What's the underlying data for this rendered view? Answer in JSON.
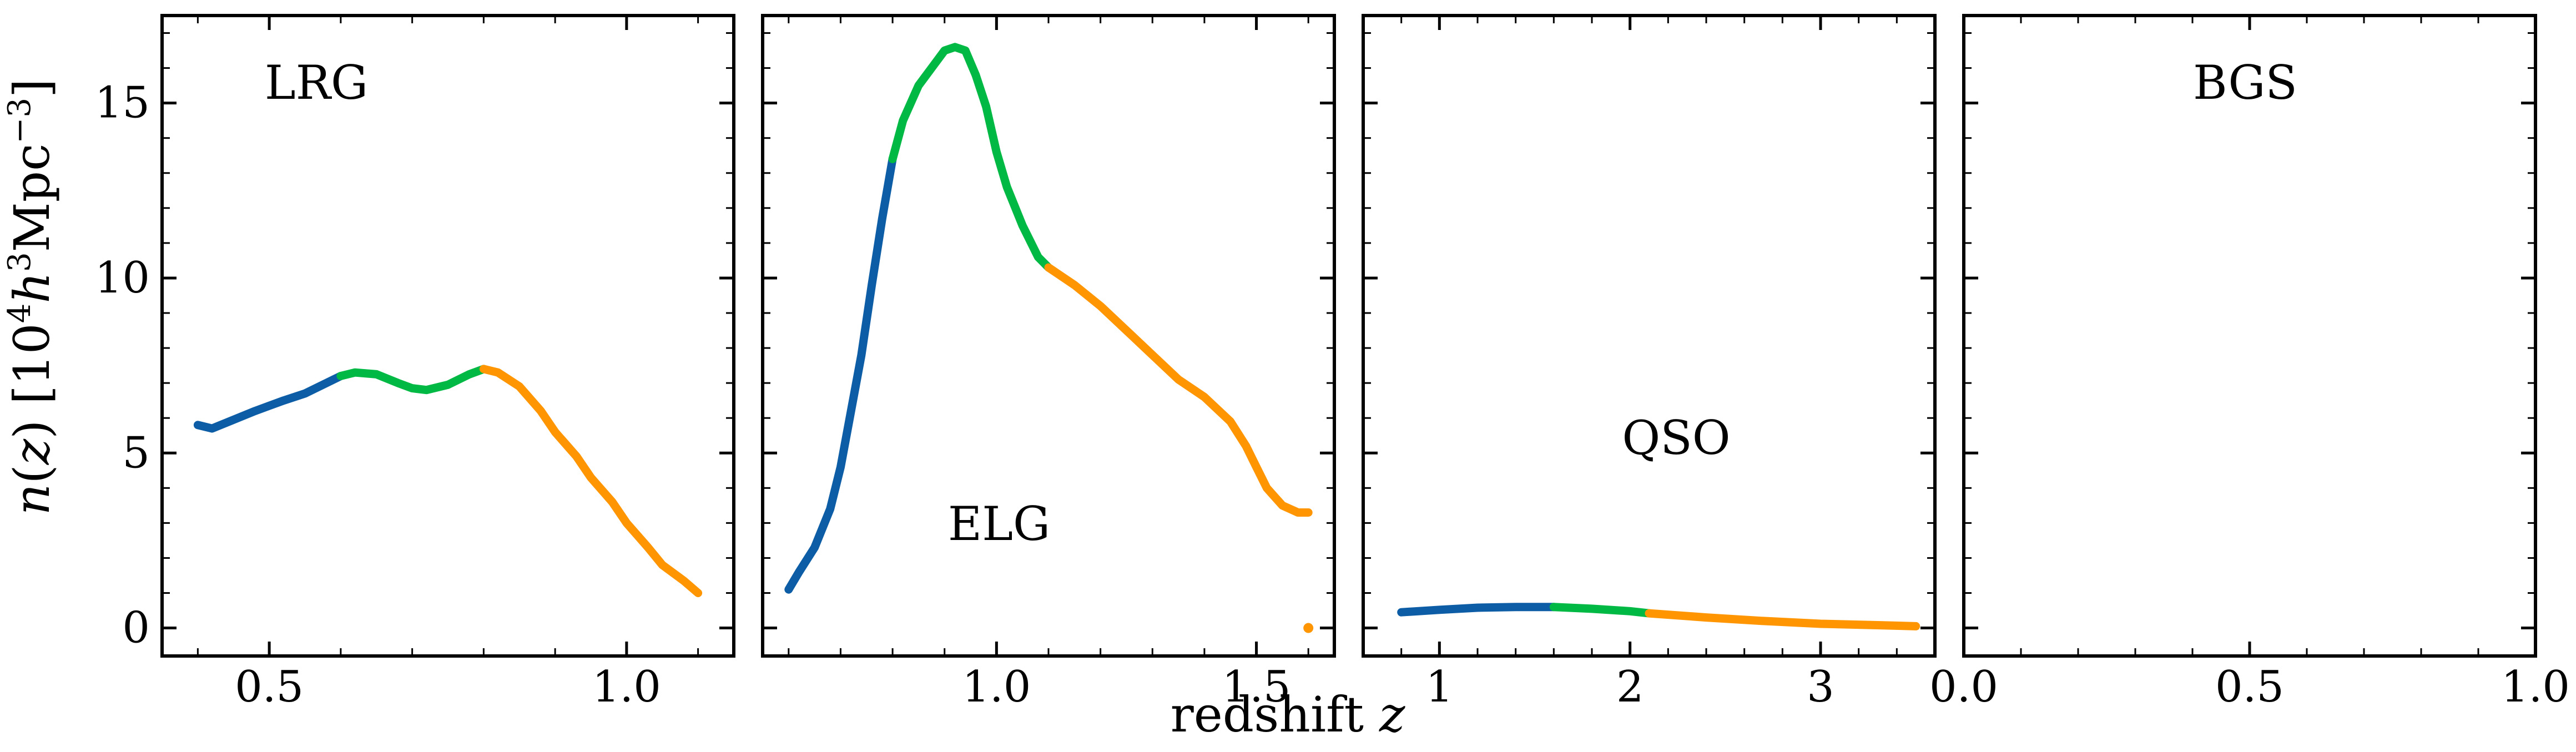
{
  "chart_data": {
    "type": "line",
    "xlabel": "redshift z",
    "ylabel": "n(z) [10^4 h^3 Mpc^-3]",
    "ylim": [
      -0.8,
      17.5
    ],
    "yticks": [
      0,
      5,
      10,
      15
    ],
    "sharey": true,
    "colors": {
      "first_segment": "#0C5DA5",
      "middle_segment": "#00B945",
      "last_segment": "#FF9500"
    },
    "panels": [
      {
        "title": "LRG",
        "xlim": [
          0.35,
          1.15
        ],
        "xticks": [
          0.5,
          1.0
        ],
        "xtick_labels": [
          "0.5",
          "1.0"
        ],
        "series": [
          {
            "color": "#0C5DA5",
            "x": [
              0.4,
              0.42,
              0.45,
              0.48,
              0.5,
              0.52,
              0.55,
              0.58,
              0.6
            ],
            "y": [
              5.8,
              5.7,
              5.95,
              6.2,
              6.35,
              6.5,
              6.7,
              7.0,
              7.2
            ]
          },
          {
            "color": "#00B945",
            "x": [
              0.6,
              0.62,
              0.65,
              0.68,
              0.7,
              0.72,
              0.75,
              0.78,
              0.8
            ],
            "y": [
              7.2,
              7.3,
              7.25,
              7.0,
              6.85,
              6.8,
              6.95,
              7.25,
              7.4
            ]
          },
          {
            "color": "#FF9500",
            "x": [
              0.8,
              0.82,
              0.85,
              0.88,
              0.9,
              0.93,
              0.95,
              0.98,
              1.0,
              1.03,
              1.05,
              1.08,
              1.1
            ],
            "y": [
              7.4,
              7.3,
              6.9,
              6.2,
              5.6,
              4.9,
              4.3,
              3.6,
              3.0,
              2.3,
              1.8,
              1.35,
              1.0
            ]
          }
        ]
      },
      {
        "title": "ELG",
        "xlim": [
          0.55,
          1.65
        ],
        "xticks": [
          1.0,
          1.5
        ],
        "xtick_labels": [
          "1.0",
          "1.5"
        ],
        "series": [
          {
            "color": "#0C5DA5",
            "x": [
              0.6,
              0.62,
              0.65,
              0.68,
              0.7,
              0.72,
              0.74,
              0.76,
              0.78,
              0.8
            ],
            "y": [
              1.1,
              1.6,
              2.3,
              3.4,
              4.6,
              6.2,
              7.8,
              9.8,
              11.7,
              13.4
            ]
          },
          {
            "color": "#00B945",
            "x": [
              0.8,
              0.82,
              0.85,
              0.88,
              0.9,
              0.92,
              0.94,
              0.96,
              0.98,
              1.0,
              1.02,
              1.05,
              1.08,
              1.1
            ],
            "y": [
              13.4,
              14.5,
              15.5,
              16.1,
              16.5,
              16.6,
              16.5,
              15.8,
              14.9,
              13.6,
              12.6,
              11.5,
              10.6,
              10.3
            ]
          },
          {
            "color": "#FF9500",
            "x": [
              1.1,
              1.15,
              1.2,
              1.25,
              1.3,
              1.35,
              1.4,
              1.45,
              1.48,
              1.5,
              1.52,
              1.55,
              1.58,
              1.6
            ],
            "y": [
              10.3,
              9.8,
              9.2,
              8.5,
              7.8,
              7.1,
              6.6,
              5.9,
              5.2,
              4.6,
              4.0,
              3.5,
              3.3,
              3.3
            ]
          }
        ],
        "outliers": [
          {
            "color": "#FF9500",
            "x": 1.6,
            "y": 0.0
          }
        ]
      },
      {
        "title": "QSO",
        "xlim": [
          0.6,
          3.6
        ],
        "xticks": [
          1,
          2,
          3
        ],
        "xtick_labels": [
          "1",
          "2",
          "3"
        ],
        "series": [
          {
            "color": "#0C5DA5",
            "x": [
              0.8,
              1.0,
              1.2,
              1.4,
              1.6
            ],
            "y": [
              0.45,
              0.52,
              0.58,
              0.6,
              0.6
            ]
          },
          {
            "color": "#00B945",
            "x": [
              1.6,
              1.8,
              2.0,
              2.1
            ],
            "y": [
              0.6,
              0.55,
              0.48,
              0.42
            ]
          },
          {
            "color": "#FF9500",
            "x": [
              2.1,
              2.4,
              2.7,
              3.0,
              3.3,
              3.5
            ],
            "y": [
              0.42,
              0.3,
              0.2,
              0.12,
              0.08,
              0.05
            ]
          }
        ]
      },
      {
        "title": "BGS",
        "xlim": [
          0.0,
          1.0
        ],
        "xticks": [
          0.0,
          0.5,
          1.0
        ],
        "xtick_labels": [
          "0.0",
          "0.5",
          "1.0"
        ],
        "series": []
      }
    ]
  }
}
